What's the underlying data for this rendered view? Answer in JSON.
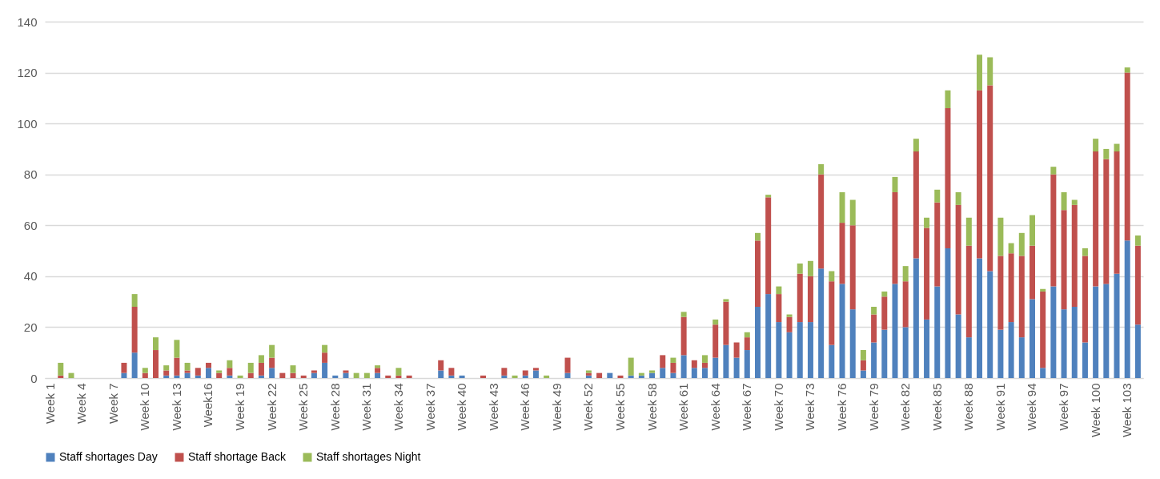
{
  "chart_data": {
    "type": "bar",
    "stacked": true,
    "categories": [
      "Week 1",
      null,
      null,
      "Week 4",
      null,
      null,
      "Week 7",
      null,
      null,
      "Week 10",
      null,
      null,
      "Week 13",
      null,
      null,
      "Week16",
      null,
      null,
      "Week 19",
      null,
      null,
      "Week 22",
      null,
      null,
      "Week 25",
      null,
      null,
      "Week 28",
      null,
      null,
      "Week 31",
      null,
      null,
      "Week 34",
      null,
      null,
      "Week 37",
      null,
      null,
      "Week 40",
      null,
      null,
      "Week 43",
      null,
      null,
      "Week 46",
      null,
      null,
      "Week 49",
      null,
      null,
      "Week 52",
      null,
      null,
      "Week 55",
      null,
      null,
      "Week 58",
      null,
      null,
      "Week 61",
      null,
      null,
      "Week 64",
      null,
      null,
      "Week 67",
      null,
      null,
      "Week 70",
      null,
      null,
      "Week 73",
      null,
      null,
      "Week 76",
      null,
      null,
      "Week 79",
      null,
      null,
      "Week 82",
      null,
      null,
      "Week 85",
      null,
      null,
      "Week 88",
      null,
      null,
      "Week 91",
      null,
      null,
      "Week 94",
      null,
      null,
      "Week 97",
      null,
      null,
      "Week 100",
      null,
      null,
      "Week 103",
      null
    ],
    "series": [
      {
        "name": "Staff shortages Day",
        "color": "#4f81bd",
        "values": [
          0,
          0,
          0,
          0,
          0,
          0,
          0,
          2,
          10,
          0,
          0,
          1,
          1,
          2,
          1,
          4,
          0,
          1,
          0,
          0,
          1,
          4,
          0,
          0,
          0,
          2,
          6,
          1,
          2,
          0,
          0,
          2,
          0,
          0,
          0,
          0,
          0,
          3,
          1,
          1,
          0,
          0,
          0,
          1,
          0,
          1,
          3,
          0,
          0,
          2,
          0,
          1,
          0,
          2,
          0,
          1,
          1,
          2,
          4,
          2,
          9,
          4,
          4,
          8,
          13,
          8,
          11,
          28,
          33,
          22,
          18,
          22,
          22,
          43,
          13,
          37,
          27,
          3,
          14,
          19,
          37,
          20,
          47,
          23,
          36,
          51,
          25,
          16,
          47,
          42,
          19,
          22,
          16,
          31,
          4,
          36,
          27,
          28,
          14,
          36,
          37,
          41,
          54,
          21
        ]
      },
      {
        "name": "Staff shortage Back",
        "color": "#c0504d",
        "values": [
          0,
          1,
          0,
          0,
          0,
          0,
          0,
          4,
          18,
          2,
          11,
          2,
          7,
          1,
          3,
          2,
          2,
          3,
          0,
          2,
          5,
          4,
          2,
          2,
          1,
          1,
          4,
          0,
          1,
          0,
          0,
          2,
          1,
          1,
          1,
          0,
          0,
          4,
          3,
          0,
          0,
          1,
          0,
          3,
          0,
          2,
          1,
          0,
          0,
          6,
          0,
          1,
          2,
          0,
          1,
          0,
          0,
          0,
          5,
          4,
          15,
          3,
          2,
          13,
          17,
          6,
          5,
          26,
          38,
          11,
          6,
          19,
          18,
          37,
          25,
          24,
          33,
          4,
          11,
          13,
          36,
          18,
          42,
          36,
          33,
          55,
          43,
          36,
          66,
          73,
          29,
          27,
          32,
          21,
          30,
          44,
          39,
          40,
          34,
          53,
          49,
          48,
          66,
          31
        ]
      },
      {
        "name": "Staff shortages Night",
        "color": "#9bbb59",
        "values": [
          0,
          5,
          2,
          0,
          0,
          0,
          0,
          0,
          5,
          2,
          5,
          2,
          7,
          3,
          0,
          0,
          1,
          3,
          1,
          4,
          3,
          5,
          0,
          3,
          0,
          0,
          3,
          0,
          0,
          2,
          2,
          1,
          0,
          3,
          0,
          0,
          0,
          0,
          0,
          0,
          0,
          0,
          0,
          0,
          1,
          0,
          0,
          1,
          0,
          0,
          0,
          1,
          0,
          0,
          0,
          7,
          1,
          1,
          0,
          2,
          2,
          0,
          3,
          2,
          1,
          0,
          2,
          3,
          1,
          3,
          1,
          4,
          6,
          4,
          4,
          12,
          10,
          4,
          3,
          2,
          6,
          6,
          5,
          4,
          5,
          7,
          5,
          11,
          14,
          11,
          15,
          4,
          9,
          12,
          1,
          3,
          7,
          2,
          3,
          5,
          4,
          3,
          2,
          4
        ]
      }
    ],
    "ylim": [
      0,
      140
    ],
    "yticks": [
      0,
      20,
      40,
      60,
      80,
      100,
      120,
      140
    ],
    "grid": "y",
    "legend": "bottom"
  }
}
